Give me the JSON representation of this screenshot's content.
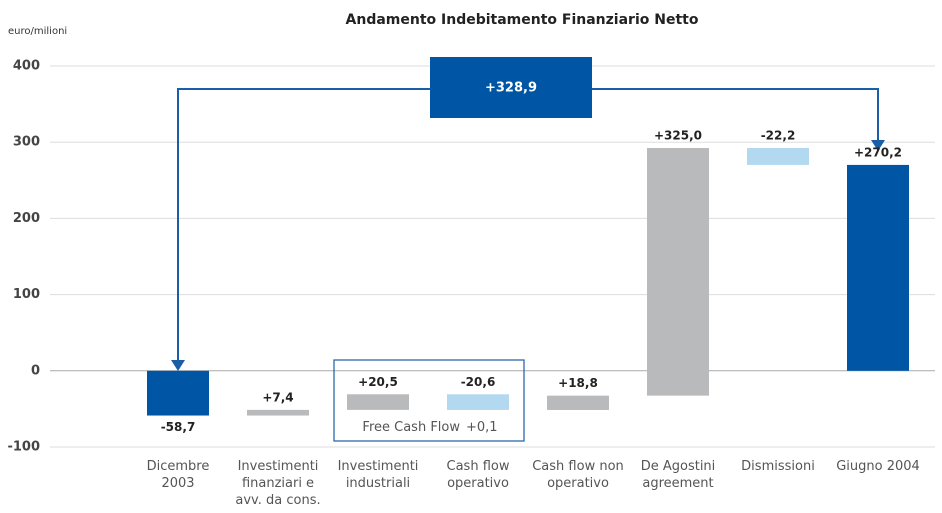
{
  "chart_data": {
    "type": "waterfall",
    "title": "Andamento Indebitamento Finanziario Netto",
    "y_label": "euro/milioni",
    "categories": [
      "Dicembre 2003",
      "Investimenti finanziari e avv. da cons.",
      "Investimenti industriali",
      "Cash flow operativo",
      "Cash flow non operativo",
      "De Agostini agreement",
      "Dismissioni",
      "Giugno 2004"
    ],
    "values": [
      -58.7,
      7.4,
      20.5,
      -20.6,
      18.8,
      325.0,
      -22.2,
      270.2
    ],
    "value_labels": [
      "-58,7",
      "+7,4",
      "+20,5",
      "-20,6",
      "+18,8",
      "+325,0",
      "-22,2",
      "+270,2"
    ],
    "totals": [
      false,
      false,
      false,
      false,
      false,
      false,
      false,
      true
    ],
    "colors": [
      "#0055a5",
      "#b9babc",
      "#b9babc",
      "#b3d9f1",
      "#b9babc",
      "#b9babc",
      "#b3d9f1",
      "#0055a5"
    ],
    "ylim": [
      -100,
      400
    ],
    "yticks": [
      -100,
      0,
      100,
      200,
      300,
      400
    ],
    "grid": true,
    "annotations": {
      "change": "+328,9",
      "free_cash_flow": "Free Cash Flow",
      "free_cash_flow_value": "+0,1"
    }
  }
}
